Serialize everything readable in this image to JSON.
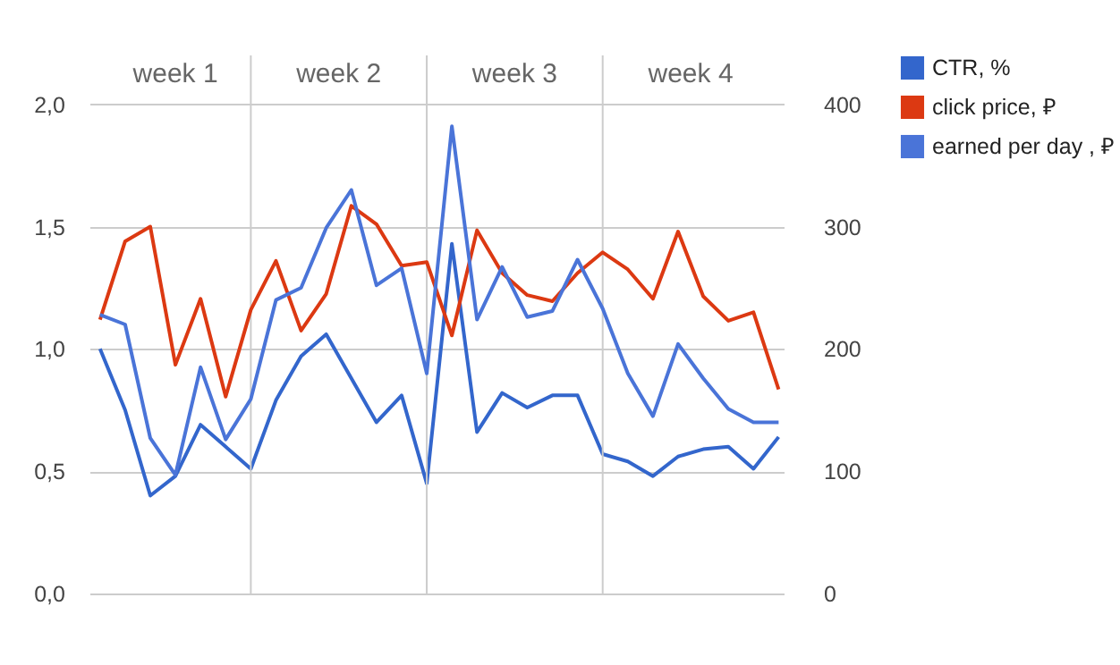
{
  "chart_data": {
    "type": "line",
    "categories": [
      null,
      null,
      null,
      null,
      null,
      null,
      null,
      null,
      null,
      null,
      null,
      null,
      null,
      null,
      null,
      null,
      null,
      null,
      null,
      null,
      null,
      null,
      null,
      null,
      null,
      null,
      null,
      null
    ],
    "ylim": [
      0,
      2.2
    ],
    "yticks": [
      {
        "value": 0,
        "label": "0,0"
      },
      {
        "value": 0.5,
        "label": "0,5"
      },
      {
        "value": 1,
        "label": "1,0"
      },
      {
        "value": 1.5,
        "label": "1,5"
      },
      {
        "value": 2,
        "label": "2,0"
      }
    ],
    "y2lim": [
      0,
      440
    ],
    "y2ticks": [
      0,
      100,
      200,
      300,
      400
    ],
    "grid": true,
    "legend": "top right",
    "line_style": "solid",
    "series": [
      {
        "name": "CTR, %",
        "color": "#3366cc",
        "values": [
          1.0,
          0.75,
          0.4,
          0.48,
          0.69,
          0.6,
          0.51,
          0.79,
          0.97,
          1.06,
          0.88,
          0.7,
          0.81,
          0.45,
          1.43,
          0.66,
          0.82,
          0.76,
          0.81,
          0.81,
          0.57,
          0.54,
          0.48,
          0.56,
          0.59,
          0.6,
          0.51,
          0.64
        ]
      },
      {
        "name": "click price, ₽",
        "color": "#dc3912",
        "axis": "y2",
        "values": [
          224,
          288,
          300,
          187,
          241,
          161,
          232,
          272,
          215,
          245,
          317,
          302,
          268,
          271,
          211,
          297,
          262,
          244,
          239,
          262,
          279,
          265,
          241,
          296,
          243,
          223,
          230,
          167
        ]
      },
      {
        "name": "earned per day , ₽",
        "color": "#4a74d8",
        "axis": "y2",
        "values": [
          228,
          220,
          127,
          97,
          185,
          126,
          159,
          240,
          250,
          299,
          330,
          252,
          266,
          180,
          382,
          224,
          267,
          226,
          231,
          273,
          233,
          180,
          145,
          204,
          176,
          151,
          140,
          140
        ]
      }
    ],
    "annotations": [
      "week 1",
      "week 2",
      "week 3",
      "week 4"
    ]
  }
}
